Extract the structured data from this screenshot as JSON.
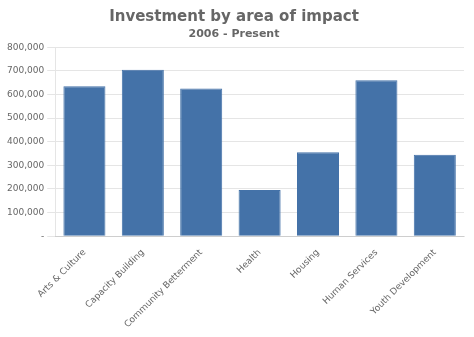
{
  "chart_data": {
    "type": "bar",
    "title": "Investment by area of impact",
    "subtitle": "2006 - Present",
    "categories": [
      "Arts & Culture",
      "Capacity Building",
      "Community Betterment",
      "Health",
      "Housing",
      "Human Services",
      "Youth Development"
    ],
    "values": [
      635000,
      705000,
      625000,
      195000,
      355000,
      660000,
      345000
    ],
    "color": "#4472a8",
    "ylim": [
      0,
      800000
    ],
    "yticks": [
      {
        "value": 0,
        "label": "-"
      },
      {
        "value": 100000,
        "label": "100,000"
      },
      {
        "value": 200000,
        "label": "200,000"
      },
      {
        "value": 300000,
        "label": "300,000"
      },
      {
        "value": 400000,
        "label": "400,000"
      },
      {
        "value": 500000,
        "label": "500,000"
      },
      {
        "value": 600000,
        "label": "600,000"
      },
      {
        "value": 700000,
        "label": "700,000"
      },
      {
        "value": 800000,
        "label": "800,000"
      }
    ],
    "grid": true
  }
}
